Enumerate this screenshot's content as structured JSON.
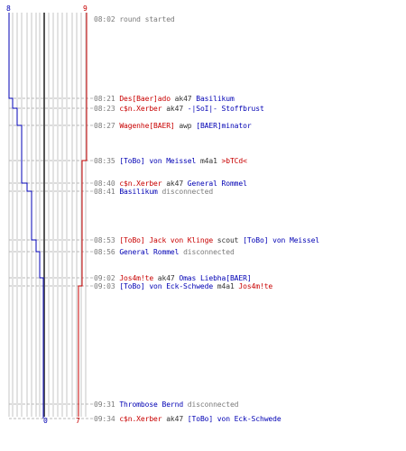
{
  "colors": {
    "team_blue": "#0000b4",
    "team_red": "#c80000",
    "muted": "#7a7a7a",
    "grid": "#bdbdbd",
    "axis": "#555555"
  },
  "counters": {
    "blue_start": "8",
    "red_start": "9",
    "blue_end": "0",
    "red_end": "7"
  },
  "events": [
    {
      "time": "08:02",
      "kind": "system",
      "text": "round started"
    },
    {
      "time": "08:21",
      "kind": "kill",
      "killer": "Des[Baer]ado",
      "killer_team": "red",
      "weapon": "ak47",
      "victim": "Basilikum",
      "victim_team": "blue"
    },
    {
      "time": "08:23",
      "kind": "kill",
      "killer": "c$n.Xerber",
      "killer_team": "red",
      "weapon": "ak47",
      "victim": "-|SoI|- Stoffbrust",
      "victim_team": "blue"
    },
    {
      "time": "08:27",
      "kind": "kill",
      "killer": "Wagenhe[BAER]",
      "killer_team": "red",
      "weapon": "awp",
      "victim": "[BAER]minator",
      "victim_team": "blue"
    },
    {
      "time": "08:35",
      "kind": "kill",
      "killer": "[ToBo] von Meissel",
      "killer_team": "blue",
      "weapon": "m4a1",
      "victim": ">bTCd<",
      "victim_team": "red"
    },
    {
      "time": "08:40",
      "kind": "kill",
      "killer": "c$n.Xerber",
      "killer_team": "red",
      "weapon": "ak47",
      "victim": "General Rommel",
      "victim_team": "blue"
    },
    {
      "time": "08:41",
      "kind": "disconnect",
      "player": "Basilikum",
      "player_team": "blue",
      "text": "disconnected"
    },
    {
      "time": "08:53",
      "kind": "kill",
      "killer": "[ToBo] Jack von Klinge",
      "killer_team": "red",
      "weapon": "scout",
      "victim": "[ToBo] von Meissel",
      "victim_team": "blue"
    },
    {
      "time": "08:56",
      "kind": "disconnect",
      "player": "General Rommel",
      "player_team": "blue",
      "text": "disconnected"
    },
    {
      "time": "09:02",
      "kind": "kill",
      "killer": "Jos4m!te",
      "killer_team": "red",
      "weapon": "ak47",
      "victim": "Omas Liebha[BAER]",
      "victim_team": "blue"
    },
    {
      "time": "09:03",
      "kind": "kill",
      "killer": "[ToBo] von Eck-Schwede",
      "killer_team": "blue",
      "weapon": "m4a1",
      "victim": "Jos4m!te",
      "victim_team": "red"
    },
    {
      "time": "09:31",
      "kind": "disconnect",
      "player": "Thrombose Bernd",
      "player_team": "blue",
      "text": "disconnected"
    },
    {
      "time": "09:34",
      "kind": "kill",
      "killer": "c$n.Xerber",
      "killer_team": "red",
      "weapon": "ak47",
      "victim": "[ToBo] von Eck-Schwede",
      "victim_team": "blue"
    }
  ]
}
